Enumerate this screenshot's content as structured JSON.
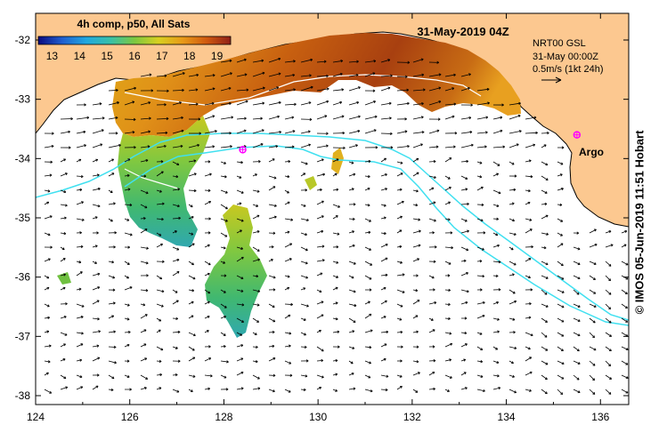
{
  "title": "31-May-2019 04Z",
  "colorbar": {
    "label": "4h comp, p50, All Sats",
    "ticks": [
      "13",
      "14",
      "15",
      "16",
      "17",
      "18",
      "19"
    ],
    "min": 12.5,
    "max": 19.5,
    "stops": [
      "#0a0a80",
      "#1f5fd0",
      "#20a8e0",
      "#38c0a8",
      "#7cc840",
      "#d8d020",
      "#e89a18",
      "#d05a10",
      "#902018"
    ]
  },
  "info": {
    "line1": "NRT00 GSL",
    "line2": "31-May 00:00Z",
    "line3": "0.5m/s (1kt 24h)"
  },
  "marker": {
    "label": "Argo",
    "lon": 135.5,
    "lat": -33.6,
    "color": "#ff00ff"
  },
  "marker2": {
    "lon": 128.4,
    "lat": -33.85,
    "color": "#ff00ff"
  },
  "axes": {
    "x_ticks": [
      "124",
      "126",
      "128",
      "130",
      "132",
      "134",
      "136"
    ],
    "y_ticks": [
      "-32",
      "-33",
      "-34",
      "-35",
      "-36",
      "-37",
      "-38"
    ],
    "lon_range": [
      124,
      136.6
    ],
    "lat_range": [
      -38.15,
      -31.55
    ]
  },
  "credit": "© IMOS 05-Jun-2019 11:51 Hobart",
  "colors": {
    "land": "#fcc890",
    "current_contour": "#40e0f0",
    "sst_contour": "#ffffff",
    "background": "#ffffff"
  }
}
